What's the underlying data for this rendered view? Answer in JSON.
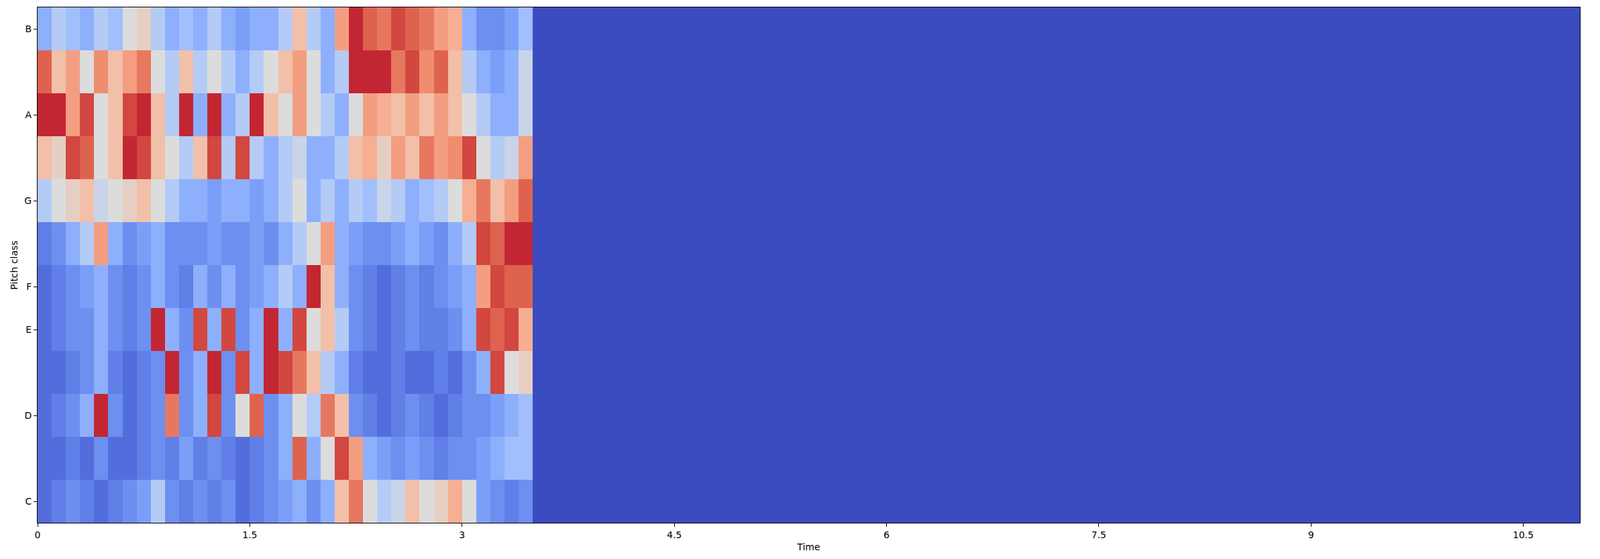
{
  "chart_data": {
    "type": "heatmap",
    "xlabel": "Time",
    "ylabel": "Pitch class",
    "time_edges": [
      0,
      0.1,
      0.2,
      0.3,
      0.4,
      0.5,
      0.6,
      0.7,
      0.8,
      0.9,
      1.0,
      1.1,
      1.2,
      1.3,
      1.4,
      1.5,
      1.6,
      1.7,
      1.8,
      1.9,
      2.0,
      2.1,
      2.2,
      2.3,
      2.4,
      2.5,
      2.6,
      2.7,
      2.8,
      2.9,
      3.0,
      3.1,
      3.2,
      3.3,
      3.4,
      3.5,
      10.9
    ],
    "y": [
      0,
      1,
      2,
      3,
      4,
      5,
      6,
      7,
      8,
      9,
      10,
      11
    ],
    "cells": [
      [
        0.1,
        0.15,
        0.2,
        0.15,
        0.1,
        0.15,
        0.2,
        0.25,
        0.4,
        0.2,
        0.15,
        0.2,
        0.15,
        0.2,
        0.1,
        0.15,
        0.2,
        0.25,
        0.3,
        0.2,
        0.3,
        0.6,
        0.8,
        0.5,
        0.4,
        0.45,
        0.6,
        0.5,
        0.55,
        0.65,
        0.5,
        0.25,
        0.2,
        0.15,
        0.2,
        0
      ],
      [
        0.1,
        0.1,
        0.15,
        0.1,
        0.2,
        0.1,
        0.1,
        0.15,
        0.2,
        0.15,
        0.25,
        0.15,
        0.2,
        0.15,
        0.1,
        0.15,
        0.2,
        0.3,
        0.85,
        0.3,
        0.5,
        0.9,
        0.7,
        0.3,
        0.25,
        0.2,
        0.25,
        0.2,
        0.15,
        0.2,
        0.2,
        0.25,
        0.3,
        0.35,
        0.35,
        0
      ],
      [
        0.1,
        0.15,
        0.2,
        0.3,
        0.95,
        0.2,
        0.1,
        0.15,
        0.2,
        0.8,
        0.2,
        0.3,
        0.9,
        0.2,
        0.5,
        0.85,
        0.2,
        0.3,
        0.5,
        0.4,
        0.8,
        0.6,
        0.2,
        0.15,
        0.1,
        0.15,
        0.2,
        0.15,
        0.1,
        0.15,
        0.2,
        0.2,
        0.25,
        0.3,
        0.35,
        0
      ],
      [
        0.1,
        0.1,
        0.15,
        0.2,
        0.3,
        0.15,
        0.1,
        0.15,
        0.2,
        0.95,
        0.2,
        0.3,
        0.95,
        0.2,
        0.9,
        0.3,
        0.95,
        0.9,
        0.8,
        0.6,
        0.4,
        0.3,
        0.15,
        0.1,
        0.1,
        0.15,
        0.1,
        0.1,
        0.15,
        0.1,
        0.2,
        0.3,
        0.9,
        0.5,
        0.55,
        0
      ],
      [
        0.1,
        0.15,
        0.2,
        0.2,
        0.3,
        0.2,
        0.15,
        0.2,
        0.95,
        0.3,
        0.2,
        0.9,
        0.3,
        0.9,
        0.2,
        0.3,
        0.95,
        0.3,
        0.9,
        0.5,
        0.6,
        0.4,
        0.2,
        0.15,
        0.1,
        0.15,
        0.2,
        0.15,
        0.15,
        0.2,
        0.3,
        0.9,
        0.85,
        0.9,
        0.65,
        0
      ],
      [
        0.1,
        0.15,
        0.2,
        0.25,
        0.3,
        0.2,
        0.15,
        0.2,
        0.3,
        0.2,
        0.15,
        0.3,
        0.2,
        0.3,
        0.2,
        0.25,
        0.3,
        0.4,
        0.3,
        0.95,
        0.6,
        0.3,
        0.2,
        0.15,
        0.1,
        0.15,
        0.2,
        0.15,
        0.2,
        0.25,
        0.3,
        0.7,
        0.9,
        0.85,
        0.85,
        0
      ],
      [
        0.15,
        0.2,
        0.3,
        0.4,
        0.7,
        0.3,
        0.2,
        0.25,
        0.3,
        0.2,
        0.2,
        0.2,
        0.25,
        0.2,
        0.2,
        0.25,
        0.2,
        0.3,
        0.4,
        0.5,
        0.7,
        0.3,
        0.25,
        0.2,
        0.2,
        0.25,
        0.3,
        0.25,
        0.2,
        0.3,
        0.4,
        0.9,
        0.85,
        0.95,
        0.95,
        0
      ],
      [
        0.4,
        0.5,
        0.55,
        0.6,
        0.45,
        0.5,
        0.55,
        0.6,
        0.5,
        0.4,
        0.3,
        0.3,
        0.25,
        0.3,
        0.3,
        0.25,
        0.3,
        0.4,
        0.5,
        0.3,
        0.4,
        0.3,
        0.4,
        0.35,
        0.45,
        0.4,
        0.3,
        0.35,
        0.4,
        0.5,
        0.65,
        0.8,
        0.6,
        0.7,
        0.85,
        0
      ],
      [
        0.6,
        0.55,
        0.9,
        0.85,
        0.5,
        0.6,
        0.95,
        0.9,
        0.6,
        0.5,
        0.4,
        0.6,
        0.9,
        0.4,
        0.9,
        0.4,
        0.3,
        0.4,
        0.45,
        0.3,
        0.3,
        0.4,
        0.6,
        0.65,
        0.55,
        0.7,
        0.6,
        0.8,
        0.7,
        0.75,
        0.9,
        0.5,
        0.4,
        0.45,
        0.7,
        0
      ],
      [
        0.95,
        0.95,
        0.7,
        0.9,
        0.5,
        0.6,
        0.9,
        0.95,
        0.6,
        0.4,
        0.95,
        0.3,
        0.95,
        0.3,
        0.4,
        0.95,
        0.6,
        0.5,
        0.7,
        0.5,
        0.4,
        0.3,
        0.5,
        0.7,
        0.65,
        0.6,
        0.7,
        0.6,
        0.7,
        0.6,
        0.5,
        0.4,
        0.3,
        0.3,
        0.45,
        0
      ],
      [
        0.85,
        0.6,
        0.7,
        0.5,
        0.75,
        0.6,
        0.7,
        0.8,
        0.5,
        0.4,
        0.6,
        0.4,
        0.5,
        0.4,
        0.3,
        0.4,
        0.5,
        0.6,
        0.7,
        0.5,
        0.3,
        0.4,
        0.95,
        0.95,
        0.95,
        0.8,
        0.9,
        0.75,
        0.85,
        0.6,
        0.4,
        0.3,
        0.25,
        0.3,
        0.45,
        0
      ],
      [
        0.3,
        0.4,
        0.35,
        0.3,
        0.4,
        0.35,
        0.5,
        0.55,
        0.4,
        0.3,
        0.35,
        0.3,
        0.4,
        0.3,
        0.25,
        0.3,
        0.3,
        0.4,
        0.6,
        0.4,
        0.3,
        0.7,
        0.95,
        0.85,
        0.8,
        0.9,
        0.85,
        0.8,
        0.7,
        0.65,
        0.3,
        0.2,
        0.2,
        0.25,
        0.35,
        0
      ]
    ],
    "zlim": [
      0,
      1
    ],
    "xlim": [
      0,
      10.9
    ],
    "xticks": [
      0,
      1.5,
      3,
      4.5,
      6,
      7.5,
      9,
      10.5
    ],
    "ylim": [
      -0.5,
      11.5
    ],
    "yticks": [
      {
        "value": 0,
        "label": "C"
      },
      {
        "value": 2,
        "label": "D"
      },
      {
        "value": 4,
        "label": "E"
      },
      {
        "value": 5,
        "label": "F"
      },
      {
        "value": 7,
        "label": "G"
      },
      {
        "value": 9,
        "label": "A"
      },
      {
        "value": 11,
        "label": "B"
      }
    ]
  }
}
